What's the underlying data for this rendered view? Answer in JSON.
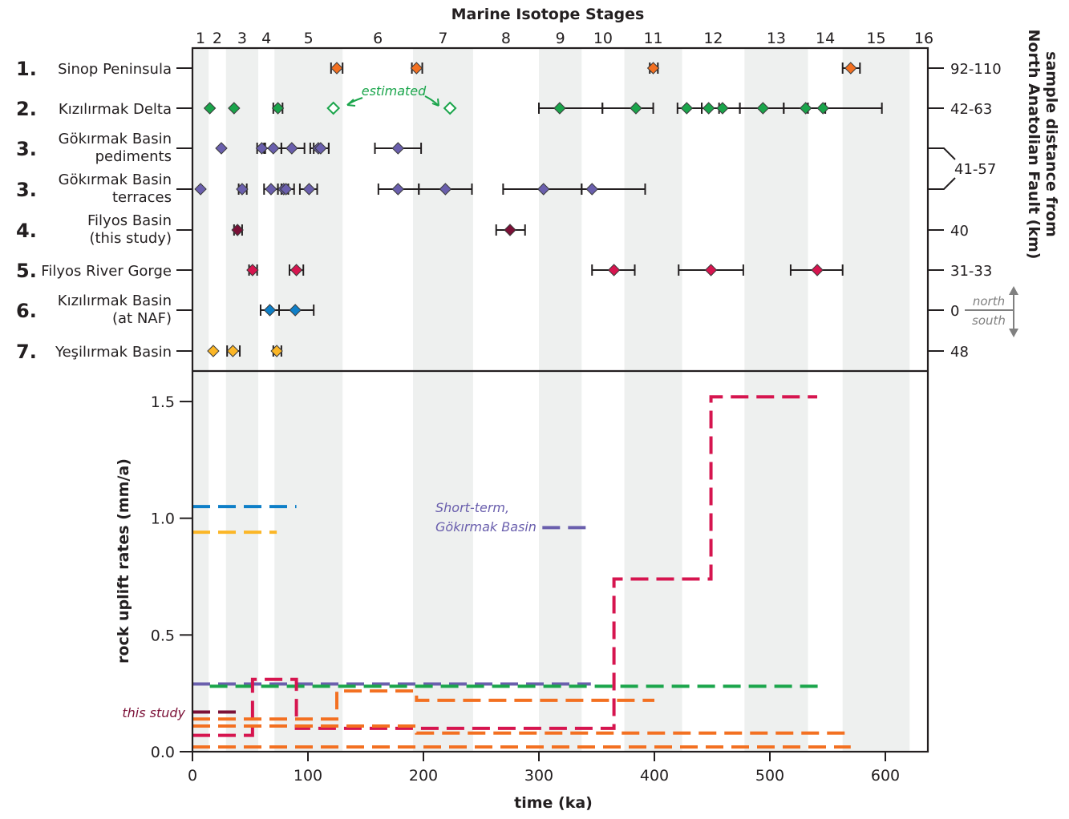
{
  "chart_data": {
    "type": "scatter",
    "title": "Marine Isotope Stages",
    "xlabel": "time (ka)",
    "xlim": [
      0,
      637
    ],
    "x_ticks": [
      0,
      100,
      200,
      300,
      400,
      500,
      600
    ],
    "mis_stages": [
      {
        "label": "1",
        "start": 0,
        "end": 14,
        "shaded": true
      },
      {
        "label": "2",
        "start": 14,
        "end": 29,
        "shaded": false
      },
      {
        "label": "3",
        "start": 29,
        "end": 57,
        "shaded": true
      },
      {
        "label": "4",
        "start": 57,
        "end": 71,
        "shaded": false
      },
      {
        "label": "5",
        "start": 71,
        "end": 130,
        "shaded": true
      },
      {
        "label": "6",
        "start": 130,
        "end": 191,
        "shaded": false
      },
      {
        "label": "7",
        "start": 191,
        "end": 243,
        "shaded": true
      },
      {
        "label": "8",
        "start": 243,
        "end": 300,
        "shaded": false
      },
      {
        "label": "9",
        "start": 300,
        "end": 337,
        "shaded": true
      },
      {
        "label": "10",
        "start": 337,
        "end": 374,
        "shaded": false
      },
      {
        "label": "11",
        "start": 374,
        "end": 424,
        "shaded": true
      },
      {
        "label": "12",
        "start": 424,
        "end": 478,
        "shaded": false
      },
      {
        "label": "13",
        "start": 478,
        "end": 533,
        "shaded": true
      },
      {
        "label": "14",
        "start": 533,
        "end": 563,
        "shaded": false
      },
      {
        "label": "15",
        "start": 563,
        "end": 621,
        "shaded": true
      },
      {
        "label": "16",
        "start": 621,
        "end": 637,
        "shaded": false
      }
    ],
    "top_panel": {
      "type": "scatter",
      "right_axis_label": "sample distance from North Anatolian Fault (km)",
      "right_annotation": {
        "north": "north",
        "south": "south"
      },
      "annotation": "estimated",
      "rows": [
        {
          "number": "1.",
          "name": [
            "Sinop Peninsula"
          ],
          "distance": "92-110",
          "color": "#f37021",
          "points": [
            {
              "x": 125,
              "lo": 120,
              "hi": 130
            },
            {
              "x": 194,
              "lo": 190,
              "hi": 199
            },
            {
              "x": 399,
              "lo": 396,
              "hi": 403
            },
            {
              "x": 570,
              "lo": 563,
              "hi": 578
            }
          ]
        },
        {
          "number": "2.",
          "name": [
            "Kızılırmak Delta"
          ],
          "distance": "42-63",
          "color": "#1aa54b",
          "points": [
            {
              "x": 15
            },
            {
              "x": 36
            },
            {
              "x": 74,
              "lo": 70,
              "hi": 78
            },
            {
              "x": 318,
              "lo": 300,
              "hi": 355
            },
            {
              "x": 384,
              "lo": 355,
              "hi": 399
            },
            {
              "x": 428,
              "lo": 420,
              "hi": 441
            },
            {
              "x": 447,
              "lo": 441,
              "hi": 474
            },
            {
              "x": 459,
              "lo": 456,
              "hi": 474
            },
            {
              "x": 494,
              "lo": 474,
              "hi": 512
            },
            {
              "x": 531,
              "lo": 512,
              "hi": 548
            },
            {
              "x": 546,
              "lo": 533,
              "hi": 597
            }
          ],
          "estimated": [
            {
              "x": 122
            },
            {
              "x": 223
            }
          ]
        },
        {
          "number": "3.",
          "name": [
            "Gökırmak Basin",
            "pediments"
          ],
          "distance": "41-57",
          "color": "#6a5fad",
          "points": [
            {
              "x": 25
            },
            {
              "x": 60,
              "lo": 56,
              "hi": 63
            },
            {
              "x": 70,
              "lo": 62,
              "hi": 77
            },
            {
              "x": 86,
              "lo": 77,
              "hi": 97
            },
            {
              "x": 109,
              "lo": 102,
              "hi": 118
            },
            {
              "x": 111,
              "lo": 105,
              "hi": 118
            },
            {
              "x": 178,
              "lo": 158,
              "hi": 198
            }
          ]
        },
        {
          "number": "3.",
          "name": [
            "Gökırmak Basin",
            "terraces"
          ],
          "distance": "41-57",
          "color": "#6a5fad",
          "points": [
            {
              "x": 7
            },
            {
              "x": 43,
              "lo": 40,
              "hi": 47
            },
            {
              "x": 68,
              "lo": 62,
              "hi": 74
            },
            {
              "x": 79,
              "lo": 74,
              "hi": 83
            },
            {
              "x": 81,
              "lo": 77,
              "hi": 88
            },
            {
              "x": 101,
              "lo": 93,
              "hi": 108
            },
            {
              "x": 178,
              "lo": 161,
              "hi": 196
            },
            {
              "x": 219,
              "lo": 196,
              "hi": 242
            },
            {
              "x": 304,
              "lo": 269,
              "hi": 337
            },
            {
              "x": 346,
              "lo": 337,
              "hi": 392
            }
          ]
        },
        {
          "number": "4.",
          "name": [
            "Filyos Basin",
            "(this study)"
          ],
          "distance": "40",
          "color": "#7b1037",
          "points": [
            {
              "x": 39,
              "lo": 36,
              "hi": 43
            },
            {
              "x": 275,
              "lo": 263,
              "hi": 288
            }
          ]
        },
        {
          "number": "5.",
          "name": [
            "Filyos River Gorge"
          ],
          "distance": "31-33",
          "color": "#d6154f",
          "points": [
            {
              "x": 52,
              "lo": 49,
              "hi": 56
            },
            {
              "x": 90,
              "lo": 84,
              "hi": 96
            },
            {
              "x": 365,
              "lo": 346,
              "hi": 383
            },
            {
              "x": 449,
              "lo": 421,
              "hi": 477
            },
            {
              "x": 541,
              "lo": 518,
              "hi": 563
            }
          ]
        },
        {
          "number": "6.",
          "name": [
            "Kızılırmak Basin",
            "(at NAF)"
          ],
          "distance": "0",
          "color": "#0e7fc8",
          "points": [
            {
              "x": 67,
              "lo": 59,
              "hi": 75
            },
            {
              "x": 89,
              "lo": 75,
              "hi": 105
            }
          ]
        },
        {
          "number": "7.",
          "name": [
            "Yeşilırmak Basin"
          ],
          "distance": "48",
          "color": "#fbb626",
          "points": [
            {
              "x": 18
            },
            {
              "x": 35,
              "lo": 30,
              "hi": 41
            },
            {
              "x": 73,
              "lo": 70,
              "hi": 77
            }
          ]
        }
      ]
    },
    "bottom_panel": {
      "type": "line",
      "ylabel": "rock uplift rates (mm/a)",
      "ylim": [
        0,
        1.65
      ],
      "y_ticks": [
        "0.0",
        "0.5",
        "1.0",
        "1.5"
      ],
      "y_tick_values": [
        0,
        0.5,
        1.0,
        1.5
      ],
      "annotations": [
        {
          "text": "this study",
          "color": "#7b1037"
        },
        {
          "text_lines": [
            "Short-term,",
            "Gökırmak Basin"
          ],
          "color": "#6a5fad"
        }
      ],
      "series": [
        {
          "name": "Kızılırmak Basin (at NAF)",
          "color": "#0e7fc8",
          "steps": [
            [
              0,
              90,
              1.05
            ]
          ]
        },
        {
          "name": "Yeşilırmak Basin",
          "color": "#fbb626",
          "steps": [
            [
              0,
              73,
              0.94
            ]
          ]
        },
        {
          "name": "Short-term, Gökırmak Basin",
          "color": "#6a5fad",
          "steps": [
            [
              303,
              345,
              0.96
            ]
          ]
        },
        {
          "name": "Gökırmak Basin long-term",
          "color": "#6a5fad",
          "steps": [
            [
              0,
              345,
              0.29
            ]
          ]
        },
        {
          "name": "Kızılırmak Delta",
          "color": "#1aa54b",
          "steps": [
            [
              15,
              542,
              0.28
            ]
          ]
        },
        {
          "name": "Filyos Basin (this study)",
          "color": "#7b1037",
          "steps": [
            [
              0,
              40,
              0.17
            ]
          ]
        },
        {
          "name": "Filyos River Gorge",
          "color": "#d6154f",
          "steps": [
            [
              0,
              52,
              0.07
            ],
            [
              52,
              90,
              0.31
            ],
            [
              90,
              365,
              0.1
            ],
            [
              365,
              449,
              0.74
            ],
            [
              449,
              541,
              1.52
            ]
          ]
        },
        {
          "name": "Sinop Peninsula A",
          "color": "#f37021",
          "steps": [
            [
              0,
              125,
              0.14
            ],
            [
              125,
              194,
              0.26
            ],
            [
              194,
              400,
              0.22
            ]
          ]
        },
        {
          "name": "Sinop Peninsula B",
          "color": "#f37021",
          "steps": [
            [
              0,
              194,
              0.11
            ],
            [
              194,
              570,
              0.08
            ]
          ]
        },
        {
          "name": "Sinop Peninsula C",
          "color": "#f37021",
          "steps": [
            [
              0,
              570,
              0.02
            ]
          ]
        }
      ]
    }
  }
}
